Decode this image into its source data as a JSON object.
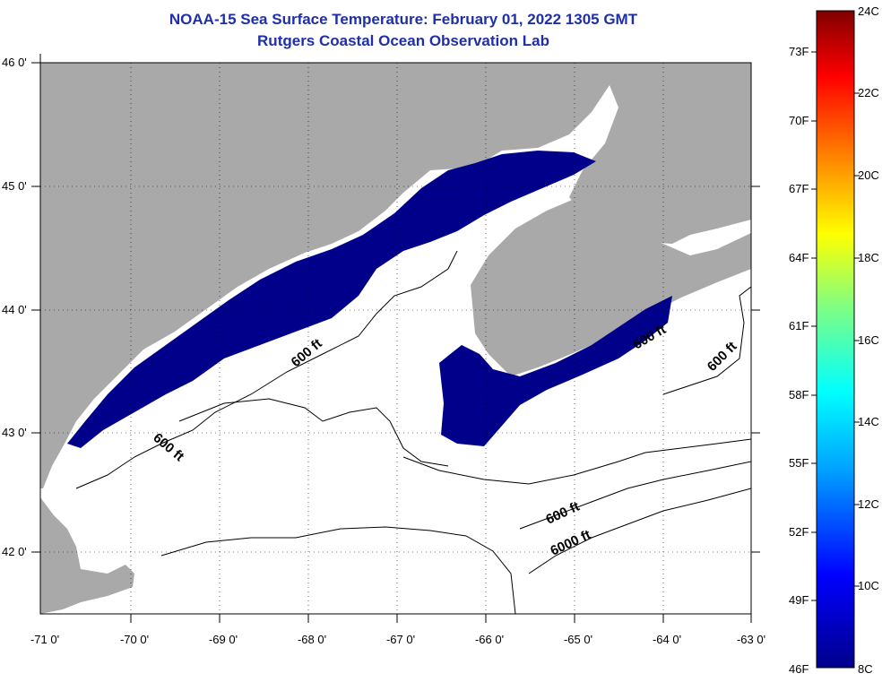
{
  "title": {
    "line1": "NOAA-15 Sea Surface Temperature:  February 01, 2022 1305 GMT",
    "line2": "Rutgers Coastal Ocean Observation Lab"
  },
  "map": {
    "lon_range": [
      -71,
      -63
    ],
    "lat_range": [
      41.5,
      46
    ],
    "lon_ticks": [
      "-71 0'",
      "-70 0'",
      "-69 0'",
      "-68 0'",
      "-67 0'",
      "-66 0'",
      "-65 0'",
      "-64 0'",
      "-63 0'"
    ],
    "lat_ticks": [
      "46 0'",
      "45 0'",
      "44 0'",
      "43 0'",
      "42 0'"
    ],
    "contour_labels": {
      "c1": "600 ft",
      "c2": "600 ft",
      "c3": "600 ft",
      "c4": "600 ft",
      "c5": "600 ft",
      "c6": "6000 ft"
    },
    "colors": {
      "land": "#a9a9a9",
      "cold_water": "#00008b",
      "ocean": "#ffffff",
      "contour": "#000000"
    }
  },
  "colorbar": {
    "fahrenheit": [
      "73F",
      "70F",
      "67F",
      "64F",
      "61F",
      "58F",
      "55F",
      "52F",
      "49F",
      "46F"
    ],
    "celsius": [
      "24C",
      "22C",
      "20C",
      "18C",
      "16C",
      "14C",
      "12C",
      "10C",
      "8C"
    ],
    "colors": [
      "#00008b",
      "#0000ff",
      "#00a0ff",
      "#00ffff",
      "#80ff80",
      "#ffff00",
      "#ff8000",
      "#ff0000",
      "#800000"
    ]
  }
}
